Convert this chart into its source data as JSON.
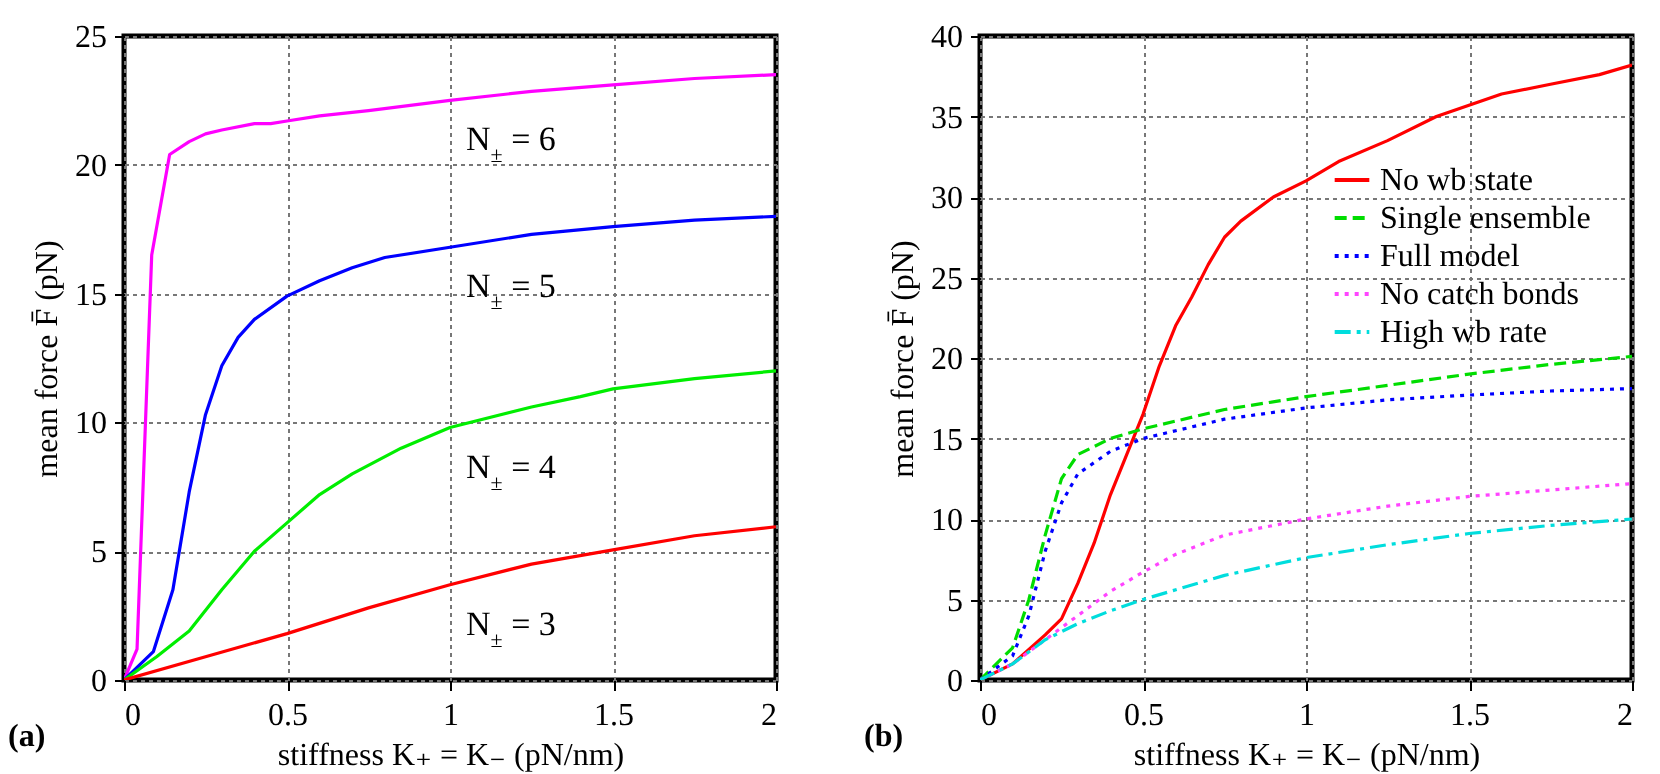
{
  "chart_data": [
    {
      "type": "line",
      "xlabel": "stiffness K₊ = K₋ (pN/nm)",
      "ylabel": "mean force F̄ (pN)",
      "annotations": [
        "(a)"
      ],
      "xlim": [
        0,
        2
      ],
      "xticks": [
        0,
        0.5,
        1,
        1.5,
        2
      ],
      "ylim": [
        0,
        25
      ],
      "yticks": [
        0,
        5,
        10,
        15,
        20,
        25
      ],
      "grid": true,
      "legend": false,
      "line_style": "solid",
      "series": [
        {
          "name": "N$_{±}$ = 6",
          "color": "#ff00ff",
          "x": [
            0,
            0.04,
            0.085,
            0.14,
            0.2,
            0.25,
            0.3,
            0.4,
            0.45,
            0.5,
            0.6,
            0.75,
            1,
            1.25,
            1.5,
            1.75,
            2
          ],
          "values": [
            0,
            1.2,
            16.5,
            20.4,
            20.9,
            21.2,
            21.35,
            21.6,
            21.6,
            21.7,
            21.9,
            22.1,
            22.5,
            22.85,
            23.1,
            23.35,
            23.5
          ]
        },
        {
          "name": "N$_{±}$ = 5",
          "color": "#0000ff",
          "x": [
            0,
            0.09,
            0.15,
            0.2,
            0.25,
            0.3,
            0.35,
            0.4,
            0.5,
            0.6,
            0.7,
            0.8,
            1,
            1.25,
            1.5,
            1.75,
            2
          ],
          "values": [
            0,
            1.1,
            3.5,
            7.3,
            10.3,
            12.2,
            13.3,
            14.0,
            14.9,
            15.5,
            16.0,
            16.4,
            16.8,
            17.3,
            17.6,
            17.85,
            18.0
          ]
        },
        {
          "name": "N$_{±}$ = 4",
          "color": "#00ee00",
          "x": [
            0,
            0.1,
            0.2,
            0.3,
            0.4,
            0.5,
            0.6,
            0.7,
            0.85,
            1,
            1.25,
            1.4,
            1.5,
            1.75,
            2
          ],
          "values": [
            0,
            0.9,
            1.9,
            3.5,
            5.0,
            6.1,
            7.2,
            8.0,
            9.0,
            9.8,
            10.6,
            11.0,
            11.3,
            11.7,
            12.0
          ]
        },
        {
          "name": "N$_{±}$ = 3",
          "color": "#ff0000",
          "x": [
            0,
            0.25,
            0.5,
            0.75,
            1,
            1.25,
            1.5,
            1.75,
            2
          ],
          "values": [
            0,
            0.9,
            1.8,
            2.8,
            3.7,
            4.5,
            5.05,
            5.6,
            5.95
          ]
        }
      ]
    },
    {
      "type": "line",
      "xlabel": "stiffness K₊ = K₋ (pN/nm)",
      "ylabel": "mean force F̄ (pN)",
      "annotations": [
        "(b)"
      ],
      "xlim": [
        0,
        2
      ],
      "xticks": [
        0,
        0.5,
        1,
        1.5,
        2
      ],
      "ylim": [
        0,
        40
      ],
      "yticks": [
        0,
        5,
        10,
        15,
        20,
        25,
        30,
        35,
        40
      ],
      "grid": true,
      "legend": "top right",
      "series": [
        {
          "name": "No wb state",
          "color": "#ff0000",
          "line_style": "solid",
          "x": [
            0,
            0.1,
            0.2,
            0.25,
            0.3,
            0.35,
            0.4,
            0.45,
            0.5,
            0.55,
            0.6,
            0.65,
            0.7,
            0.75,
            0.8,
            0.9,
            1,
            1.1,
            1.25,
            1.4,
            1.5,
            1.6,
            1.75,
            1.9,
            2
          ],
          "values": [
            0,
            1,
            2.8,
            3.8,
            6,
            8.5,
            11.5,
            14,
            16.5,
            19.5,
            22,
            23.8,
            25.8,
            27.5,
            28.5,
            30,
            31,
            32.2,
            33.5,
            35,
            35.7,
            36.4,
            37,
            37.6,
            38.2
          ]
        },
        {
          "name": "Single ensemble",
          "color": "#00dd00",
          "line_style": "dashed",
          "x": [
            0,
            0.1,
            0.15,
            0.2,
            0.25,
            0.3,
            0.4,
            0.5,
            0.75,
            1,
            1.25,
            1.5,
            1.75,
            2
          ],
          "values": [
            0,
            2,
            5,
            9,
            12.5,
            14,
            15,
            15.6,
            16.8,
            17.6,
            18.3,
            19,
            19.6,
            20.1
          ]
        },
        {
          "name": "Full model",
          "color": "#0000ff",
          "line_style": "dotted",
          "x": [
            0,
            0.1,
            0.15,
            0.2,
            0.25,
            0.3,
            0.4,
            0.5,
            0.75,
            1,
            1.25,
            1.5,
            1.75,
            2
          ],
          "values": [
            0,
            1.5,
            4,
            8,
            11,
            12.8,
            14.2,
            15,
            16.2,
            16.9,
            17.4,
            17.7,
            17.95,
            18.1
          ]
        },
        {
          "name": "No catch bonds",
          "color": "#ff44ff",
          "line_style": "dotted",
          "x": [
            0,
            0.1,
            0.2,
            0.3,
            0.4,
            0.5,
            0.6,
            0.75,
            1,
            1.25,
            1.5,
            1.75,
            2
          ],
          "values": [
            0,
            1,
            2.5,
            4,
            5.5,
            6.7,
            7.8,
            9,
            10,
            10.8,
            11.4,
            11.8,
            12.2
          ]
        },
        {
          "name": "High wb rate",
          "color": "#00dddd",
          "line_style": "dashdot",
          "x": [
            0,
            0.1,
            0.2,
            0.3,
            0.4,
            0.5,
            0.75,
            1,
            1.25,
            1.5,
            1.75,
            2
          ],
          "values": [
            0,
            1,
            2.5,
            3.5,
            4.3,
            5,
            6.5,
            7.6,
            8.4,
            9.1,
            9.6,
            10
          ]
        }
      ]
    }
  ]
}
